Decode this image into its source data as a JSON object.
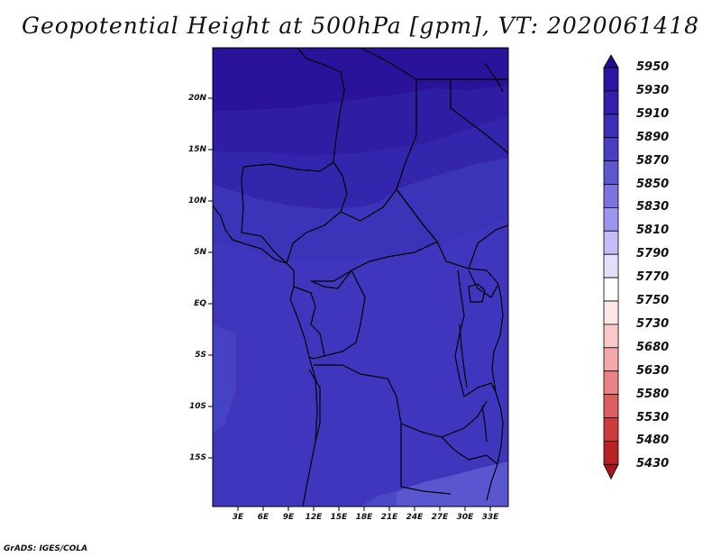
{
  "title": "Geopotential Height at 500hPa [gpm], VT: 2020061418",
  "credit": "GrADS: IGES/COLA",
  "lat_labels": [
    "20N",
    "15N",
    "10N",
    "5N",
    "EQ",
    "5S",
    "10S",
    "15S"
  ],
  "lon_labels": [
    "3E",
    "6E",
    "9E",
    "12E",
    "15E",
    "18E",
    "21E",
    "24E",
    "27E",
    "30E",
    "33E"
  ],
  "colorbar": {
    "levels": [
      "5950",
      "5930",
      "5910",
      "5890",
      "5870",
      "5850",
      "5830",
      "5810",
      "5790",
      "5770",
      "5750",
      "5730",
      "5680",
      "5630",
      "5580",
      "5530",
      "5480",
      "5430"
    ],
    "colors": [
      "#1e0f8f",
      "#2a16a0",
      "#3320aa",
      "#3d2fb6",
      "#4a3ec3",
      "#5f57cf",
      "#7c72e0",
      "#9d95ee",
      "#c2bdf7",
      "#e3e0fb",
      "#ffffff",
      "#fde6e6",
      "#f9c9c9",
      "#f3a8a8",
      "#e98383",
      "#dc5f5f",
      "#cc3c3c",
      "#b82222",
      "#a51818"
    ]
  },
  "colors": {
    "ocean_south": "#4035bd",
    "land_main": "#3f3bbd",
    "north_band": "#2a19a0",
    "far_north": "#2a139a",
    "sahel_band": "#3a2cb1",
    "southeast_light": "#5a56d0"
  }
}
